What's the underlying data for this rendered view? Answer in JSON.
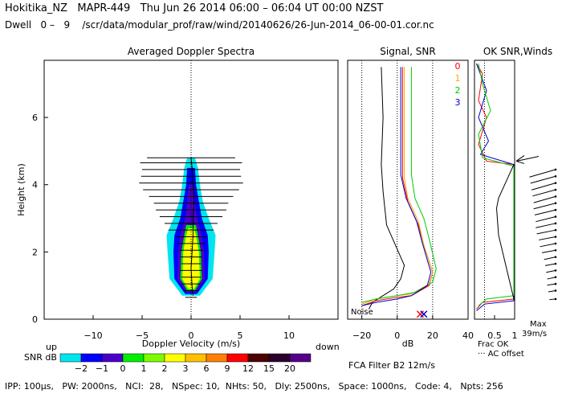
{
  "header": {
    "line1": "Hokitika_NZ   MAPR-449   Thu Jun 26 2014 06:00 – 06:04 UT 00:00 NZST",
    "line2": "Dwell   0 –   9    /scr/data/modular_prof/raw/wind/20140626/26-Jun-2014_06-00-01.cor.nc"
  },
  "footer": {
    "params": "IPP: 100μs,   PW: 2000ns,   NCI:  28,   NSpec: 10,  NHts: 50,   Dly: 2500ns,   Space: 1000ns,   Code: 4,   Npts: 256",
    "fca": "FCA Filter B2 12m/s"
  },
  "colors": {
    "snr_scale": [
      "#00e5ee",
      "#0000ff",
      "#4a00c8",
      "#00ee00",
      "#7cfc00",
      "#ffff00",
      "#ffc000",
      "#ff8000",
      "#ff0000",
      "#4d0000",
      "#2b002b",
      "#550088"
    ],
    "series": {
      "0": "#ff0000",
      "1": "#ffa500",
      "2": "#00cc00",
      "3": "#0000cc"
    }
  },
  "chart_data": [
    {
      "type": "heatmap",
      "title": "Averaged Doppler Spectra",
      "xlabel": "Doppler Velocity (m/s)",
      "ylabel": "Height (km)",
      "xlim": [
        -15,
        15
      ],
      "ylim": [
        0,
        7.7
      ],
      "xticks": [
        -10,
        -5,
        0,
        5,
        10
      ],
      "yticks": [
        0,
        2,
        4,
        6
      ],
      "x_left_label": "up",
      "x_right_label": "down",
      "colorbar": {
        "label": "SNR dB",
        "ticks": [
          "−2",
          "−1",
          "0",
          "1",
          "2",
          "3",
          "6",
          "9",
          "12",
          "15",
          "20"
        ]
      },
      "mean_profile": [
        {
          "h": 0.7,
          "v": 0.2
        },
        {
          "h": 1.0,
          "v": 0.1
        },
        {
          "h": 1.5,
          "v": 0.0
        },
        {
          "h": 2.0,
          "v": 0.1
        },
        {
          "h": 2.5,
          "v": 0.2
        },
        {
          "h": 3.0,
          "v": 0.2
        },
        {
          "h": 3.5,
          "v": 0.3
        },
        {
          "h": 4.0,
          "v": 0.2
        },
        {
          "h": 4.5,
          "v": 0.1
        },
        {
          "h": 4.8,
          "v": 0.0
        }
      ],
      "width_bars": [
        {
          "h": 0.65,
          "w": 0.6
        },
        {
          "h": 0.85,
          "w": 0.8
        },
        {
          "h": 1.05,
          "w": 1.0
        },
        {
          "h": 1.25,
          "w": 1.0
        },
        {
          "h": 1.45,
          "w": 1.1
        },
        {
          "h": 1.65,
          "w": 1.0
        },
        {
          "h": 1.85,
          "w": 1.1
        },
        {
          "h": 2.05,
          "w": 1.2
        },
        {
          "h": 2.25,
          "w": 1.4
        },
        {
          "h": 2.45,
          "w": 1.6
        },
        {
          "h": 2.65,
          "w": 2.3
        },
        {
          "h": 2.85,
          "w": 2.7
        },
        {
          "h": 3.05,
          "w": 3.2
        },
        {
          "h": 3.25,
          "w": 3.6
        },
        {
          "h": 3.45,
          "w": 3.8
        },
        {
          "h": 3.65,
          "w": 4.3
        },
        {
          "h": 3.85,
          "w": 4.9
        },
        {
          "h": 4.05,
          "w": 5.3
        },
        {
          "h": 4.25,
          "w": 5.1
        },
        {
          "h": 4.45,
          "w": 5.0
        },
        {
          "h": 4.65,
          "w": 5.2
        },
        {
          "h": 4.8,
          "w": 4.5
        }
      ],
      "contours": [
        {
          "level": "-2",
          "width": [
            [
              0.7,
              0.9
            ],
            [
              1.2,
              2.2
            ],
            [
              2.0,
              2.4
            ],
            [
              2.5,
              2.5
            ],
            [
              3.0,
              1.8
            ],
            [
              3.5,
              1.2
            ],
            [
              4.0,
              0.9
            ],
            [
              4.5,
              0.7
            ],
            [
              4.8,
              0.4
            ]
          ]
        },
        {
          "level": "-1",
          "width": [
            [
              0.75,
              0.6
            ],
            [
              1.2,
              1.7
            ],
            [
              2.0,
              1.8
            ],
            [
              2.5,
              1.7
            ],
            [
              3.0,
              1.1
            ],
            [
              3.5,
              0.8
            ],
            [
              4.0,
              0.5
            ],
            [
              4.5,
              0.4
            ]
          ]
        },
        {
          "level": "0",
          "width": [
            [
              0.8,
              0.5
            ],
            [
              1.2,
              1.4
            ],
            [
              2.0,
              1.3
            ],
            [
              2.5,
              1.1
            ],
            [
              3.0,
              0.6
            ],
            [
              3.5,
              0.4
            ],
            [
              4.0,
              0.25
            ]
          ]
        },
        {
          "level": "1",
          "width": [
            [
              0.85,
              0.4
            ],
            [
              1.2,
              1.1
            ],
            [
              2.0,
              1.0
            ],
            [
              2.5,
              0.7
            ],
            [
              2.8,
              0.5
            ]
          ]
        },
        {
          "level": "3",
          "width": [
            [
              0.9,
              0.3
            ],
            [
              1.2,
              0.9
            ],
            [
              2.0,
              0.8
            ],
            [
              2.5,
              0.5
            ],
            [
              2.7,
              0.3
            ]
          ]
        }
      ]
    },
    {
      "type": "line",
      "title": "Signal, SNR",
      "xlabel": "dB",
      "xlim": [
        -28,
        40
      ],
      "ylim": [
        0,
        7.7
      ],
      "xticks": [
        -20,
        0,
        20,
        40
      ],
      "noise_label": "Noise",
      "legend": [
        "0",
        "1",
        "2",
        "3"
      ],
      "series": [
        {
          "name": "signal",
          "points": [
            [
              -16,
              0.3
            ],
            [
              -14,
              0.5
            ],
            [
              -8,
              0.7
            ],
            [
              -2,
              0.9
            ],
            [
              2,
              1.2
            ],
            [
              4,
              1.6
            ],
            [
              -6,
              2.8
            ],
            [
              -8,
              3.8
            ],
            [
              -9,
              4.6
            ],
            [
              -8,
              6.0
            ],
            [
              -9,
              7.5
            ]
          ]
        },
        {
          "name": "0",
          "points": [
            [
              -20,
              0.4
            ],
            [
              -12,
              0.55
            ],
            [
              0,
              0.65
            ],
            [
              8,
              0.7
            ],
            [
              18,
              1.0
            ],
            [
              20,
              1.4
            ],
            [
              15,
              2.2
            ],
            [
              12,
              2.8
            ],
            [
              6,
              3.5
            ],
            [
              3,
              4.2
            ],
            [
              3,
              5.0
            ],
            [
              3,
              6.5
            ],
            [
              3,
              7.5
            ]
          ]
        },
        {
          "name": "1",
          "points": [
            [
              -20,
              0.45
            ],
            [
              -12,
              0.6
            ],
            [
              0,
              0.7
            ],
            [
              8,
              0.75
            ],
            [
              18,
              1.05
            ],
            [
              20,
              1.4
            ],
            [
              15,
              2.2
            ],
            [
              12,
              2.9
            ],
            [
              6,
              3.6
            ],
            [
              4,
              4.2
            ],
            [
              4,
              5.0
            ],
            [
              4,
              6.5
            ],
            [
              4,
              7.5
            ]
          ]
        },
        {
          "name": "2",
          "points": [
            [
              -20,
              0.5
            ],
            [
              -12,
              0.6
            ],
            [
              0,
              0.7
            ],
            [
              10,
              0.8
            ],
            [
              20,
              1.1
            ],
            [
              22,
              1.5
            ],
            [
              18,
              2.4
            ],
            [
              15,
              3.0
            ],
            [
              10,
              3.6
            ],
            [
              8,
              4.3
            ],
            [
              8,
              5.2
            ],
            [
              8,
              6.5
            ],
            [
              8,
              7.5
            ]
          ]
        },
        {
          "name": "3",
          "points": [
            [
              -20,
              0.4
            ],
            [
              -12,
              0.5
            ],
            [
              0,
              0.6
            ],
            [
              8,
              0.7
            ],
            [
              17,
              1.0
            ],
            [
              19,
              1.4
            ],
            [
              14,
              2.3
            ],
            [
              11,
              2.9
            ],
            [
              5,
              3.6
            ],
            [
              2,
              4.3
            ],
            [
              2,
              5.0
            ],
            [
              2,
              6.5
            ],
            [
              2,
              7.5
            ]
          ]
        }
      ],
      "noise_markers": [
        {
          "x": 13,
          "h": 0.15,
          "color": "#ff0000"
        },
        {
          "x": 15,
          "h": 0.15,
          "color": "#0000cc"
        }
      ]
    },
    {
      "type": "line",
      "title": "OK SNR,Winds",
      "xlim": [
        0,
        1
      ],
      "xticks": [
        "0.5",
        "1"
      ],
      "xtick_values": [
        0.5,
        1
      ],
      "frac_label": "Frac OK",
      "ac_label": "··· AC offset",
      "max_label": "Max",
      "max_value": "39m/s",
      "cutoff_height": 4.7,
      "series": [
        {
          "name": "frac_ok",
          "points": [
            [
              0.05,
              0.3
            ],
            [
              0.2,
              0.5
            ],
            [
              0.98,
              0.6
            ],
            [
              0.98,
              4.6
            ],
            [
              0.3,
              4.7
            ],
            [
              0.1,
              5.2
            ],
            [
              0.3,
              6.0
            ],
            [
              0.1,
              6.5
            ],
            [
              0.2,
              7.3
            ],
            [
              0.05,
              7.6
            ]
          ]
        },
        {
          "name": "3",
          "points": [
            [
              0.05,
              0.25
            ],
            [
              0.25,
              0.45
            ],
            [
              0.98,
              0.55
            ],
            [
              0.98,
              4.6
            ],
            [
              0.15,
              4.9
            ],
            [
              0.35,
              5.3
            ],
            [
              0.1,
              6.0
            ],
            [
              0.3,
              6.8
            ],
            [
              0.05,
              7.6
            ]
          ]
        },
        {
          "name": "2",
          "points": [
            [
              0.1,
              0.4
            ],
            [
              0.3,
              0.6
            ],
            [
              0.98,
              0.7
            ],
            [
              0.98,
              4.55
            ],
            [
              0.2,
              4.8
            ],
            [
              0.1,
              5.5
            ],
            [
              0.4,
              6.2
            ],
            [
              0.2,
              7.0
            ],
            [
              0.1,
              7.6
            ]
          ]
        },
        {
          "name": "signal",
          "points": [
            [
              0.98,
              0.6
            ],
            [
              0.6,
              2.5
            ],
            [
              0.55,
              3.3
            ],
            [
              0.6,
              3.6
            ],
            [
              0.98,
              4.6
            ]
          ]
        }
      ],
      "winds": [
        {
          "h": 0.6,
          "u": 6,
          "v": -1
        },
        {
          "h": 0.85,
          "u": 7,
          "v": -2
        },
        {
          "h": 1.05,
          "u": 8,
          "v": -2
        },
        {
          "h": 1.25,
          "u": 8,
          "v": -3
        },
        {
          "h": 1.45,
          "u": 9,
          "v": -3
        },
        {
          "h": 1.65,
          "u": 10,
          "v": -3
        },
        {
          "h": 1.85,
          "u": 11,
          "v": -4
        },
        {
          "h": 2.05,
          "u": 13,
          "v": -4
        },
        {
          "h": 2.25,
          "u": 15,
          "v": -5
        },
        {
          "h": 2.45,
          "u": 16,
          "v": -5
        },
        {
          "h": 2.65,
          "u": 18,
          "v": -6
        },
        {
          "h": 2.85,
          "u": 19,
          "v": -7
        },
        {
          "h": 3.05,
          "u": 19,
          "v": -8
        },
        {
          "h": 3.25,
          "u": 20,
          "v": -8
        },
        {
          "h": 3.45,
          "u": 21,
          "v": -9
        },
        {
          "h": 3.65,
          "u": 21,
          "v": -10
        },
        {
          "h": 3.85,
          "u": 22,
          "v": -10
        },
        {
          "h": 4.05,
          "u": 23,
          "v": -11
        },
        {
          "h": 4.25,
          "u": 24,
          "v": -11
        },
        {
          "h": 4.45,
          "u": 25,
          "v": -12
        }
      ]
    }
  ]
}
